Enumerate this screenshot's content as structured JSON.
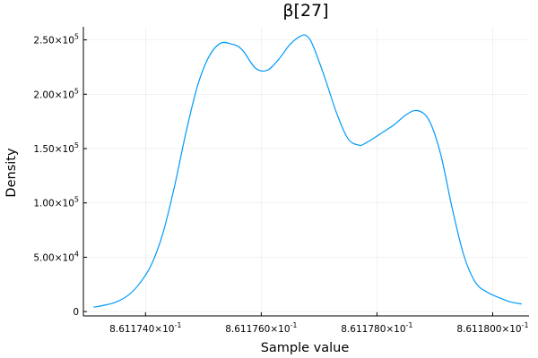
{
  "chart_data": {
    "type": "line",
    "title": "β[27]",
    "xlabel": "Sample value",
    "ylabel": "Density",
    "xlim": [
      0.861172926,
      0.861180628
    ],
    "ylim": [
      -4000,
      262000
    ],
    "grid": true,
    "legend": "none",
    "x_ticks": [
      {
        "value": 0.861174,
        "mantissa": "8.611740",
        "exponent": "-1"
      },
      {
        "value": 0.861176,
        "mantissa": "8.611760",
        "exponent": "-1"
      },
      {
        "value": 0.861178,
        "mantissa": "8.611780",
        "exponent": "-1"
      },
      {
        "value": 0.86118,
        "mantissa": "8.611800",
        "exponent": "-1"
      }
    ],
    "y_ticks": [
      {
        "value": 0,
        "mantissa": "0",
        "exponent": ""
      },
      {
        "value": 50000,
        "mantissa": "5.00",
        "exponent": "4"
      },
      {
        "value": 100000,
        "mantissa": "1.00",
        "exponent": "5"
      },
      {
        "value": 150000,
        "mantissa": "1.50",
        "exponent": "5"
      },
      {
        "value": 200000,
        "mantissa": "2.00",
        "exponent": "5"
      },
      {
        "value": 250000,
        "mantissa": "2.50",
        "exponent": "5"
      }
    ],
    "series": [
      {
        "color": "#009AFA",
        "x": [
          0.8611731,
          0.8611733,
          0.8611735,
          0.8611737,
          0.8611739,
          0.8611741,
          0.8611743,
          0.8611745,
          0.8611747,
          0.8611749,
          0.8611751,
          0.8611753,
          0.8611755,
          0.8611756,
          0.8611757,
          0.8611759,
          0.8611761,
          0.8611763,
          0.8611765,
          0.8611767,
          0.8611768,
          0.8611769,
          0.8611771,
          0.8611773,
          0.8611775,
          0.8611777,
          0.8611778,
          0.8611779,
          0.8611781,
          0.8611783,
          0.8611785,
          0.8611787,
          0.8611789,
          0.8611791,
          0.8611793,
          0.8611795,
          0.8611797,
          0.8611799,
          0.8611801,
          0.8611803,
          0.8611805
        ],
        "y": [
          4000,
          6000,
          9000,
          15000,
          26000,
          43000,
          72000,
          115000,
          165000,
          208000,
          235000,
          247000,
          246000,
          244000,
          239000,
          224000,
          222000,
          232000,
          246000,
          254000,
          253000,
          244000,
          215000,
          183000,
          159000,
          153000,
          155000,
          158000,
          165000,
          172000,
          181000,
          185000,
          176000,
          145000,
          95000,
          52000,
          27000,
          18000,
          13000,
          9000,
          7000
        ]
      }
    ]
  }
}
